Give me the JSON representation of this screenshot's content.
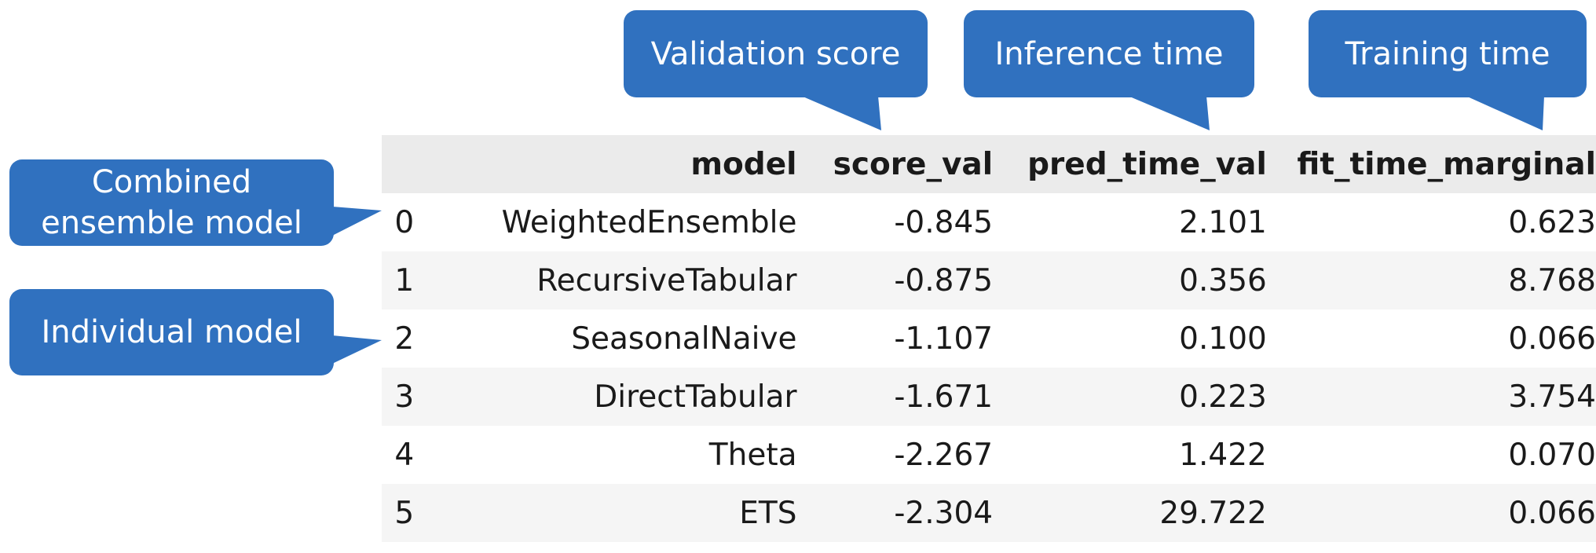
{
  "callouts": {
    "validation": "Validation score",
    "inference": "Inference time",
    "training": "Training time",
    "ensemble": "Combined ensemble model",
    "individual": "Individual model"
  },
  "table": {
    "columns": [
      "",
      "model",
      "score_val",
      "pred_time_val",
      "fit_time_marginal"
    ],
    "rows": [
      {
        "index": "0",
        "model": "WeightedEnsemble",
        "score_val": "-0.845",
        "pred_time_val": "2.101",
        "fit_time_marginal": "0.623"
      },
      {
        "index": "1",
        "model": "RecursiveTabular",
        "score_val": "-0.875",
        "pred_time_val": "0.356",
        "fit_time_marginal": "8.768"
      },
      {
        "index": "2",
        "model": "SeasonalNaive",
        "score_val": "-1.107",
        "pred_time_val": "0.100",
        "fit_time_marginal": "0.066"
      },
      {
        "index": "3",
        "model": "DirectTabular",
        "score_val": "-1.671",
        "pred_time_val": "0.223",
        "fit_time_marginal": "3.754"
      },
      {
        "index": "4",
        "model": "Theta",
        "score_val": "-2.267",
        "pred_time_val": "1.422",
        "fit_time_marginal": "0.070"
      },
      {
        "index": "5",
        "model": "ETS",
        "score_val": "-2.304",
        "pred_time_val": "29.722",
        "fit_time_marginal": "0.066"
      }
    ]
  },
  "colors": {
    "callout": "#3071bf",
    "header_bg": "#ebebeb",
    "stripe_bg": "#f5f5f5"
  }
}
